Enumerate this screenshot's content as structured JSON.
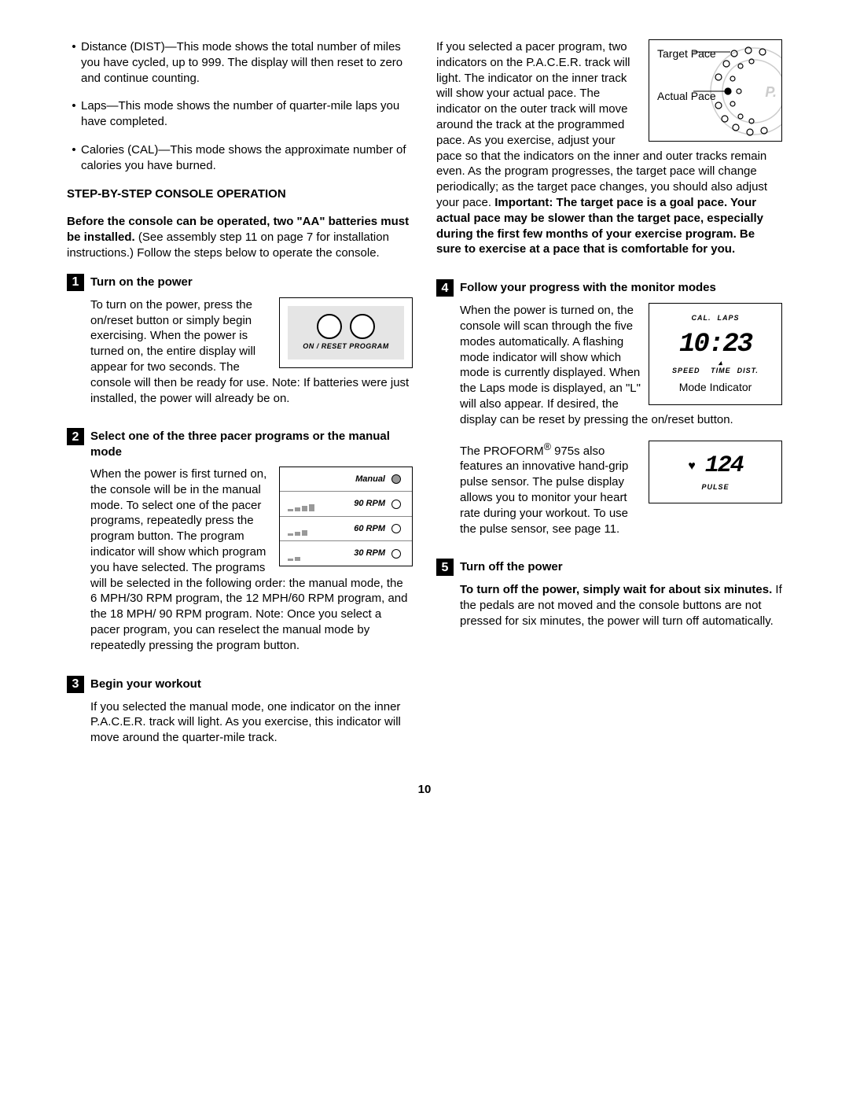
{
  "page_number": "10",
  "left_column": {
    "bullets": [
      "Distance (DIST)—This mode shows the total number of miles you have cycled, up to 999. The display will then reset to zero and continue counting.",
      "Laps—This mode shows the number of quarter-mile laps you have completed.",
      "Calories (CAL)—This mode shows the approximate number of calories you have burned."
    ],
    "section_heading": "STEP-BY-STEP CONSOLE OPERATION",
    "intro_bold": "Before the console can be operated, two \"AA\" batteries must be installed.",
    "intro_rest": " (See assembly step 11 on page 7 for installation instructions.) Follow the steps below to operate the console.",
    "step1": {
      "num": "1",
      "title": "Turn on the power",
      "body": "To turn on the power, press the on/reset button or simply begin exercising. When the power is turned on, the entire display will appear for two seconds. The console will then be ready for use. Note: If batteries were just installed, the power will already be on.",
      "fig_label": "ON / RESET PROGRAM"
    },
    "step2": {
      "num": "2",
      "title": "Select one of the three pacer programs or the manual mode",
      "body": "When the power is first turned on, the console will be in the manual mode. To select one of the pacer programs, repeatedly press the program button. The program indicator will show which program you have selected. The programs will be selected in the following order: the manual mode, the 6 MPH/30 RPM program, the 12 MPH/60 RPM program, and the 18 MPH/ 90 RPM program. Note: Once you select a pacer program, you can reselect the manual mode by repeatedly pressing the program button.",
      "rpm_rows": [
        {
          "label": "Manual",
          "filled": true,
          "bar_heights": []
        },
        {
          "label": "90 RPM",
          "filled": false,
          "bar_heights": [
            3,
            5,
            7,
            9
          ]
        },
        {
          "label": "60 RPM",
          "filled": false,
          "bar_heights": [
            3,
            5,
            7
          ]
        },
        {
          "label": "30 RPM",
          "filled": false,
          "bar_heights": [
            3,
            5
          ]
        }
      ]
    },
    "step3": {
      "num": "3",
      "title": "Begin your workout",
      "body": "If you selected the manual mode, one indicator on the inner P.A.C.E.R. track will light. As you exercise, this indicator will move around the quarter-mile track."
    }
  },
  "right_column": {
    "step3_cont": "If you selected a pacer program, two indicators on the P.A.C.E.R. track will light. The indicator on the inner track will show your actual pace. The indicator on the outer track will move around the track at the programmed pace. As you exercise, adjust your pace so that the indicators on the inner and outer tracks remain even. As the program progresses, the target pace will change periodically; as the target pace changes, you should also adjust your pace. ",
    "step3_bold": "Important: The target pace is a goal pace. Your actual pace may be slower than the target pace, especially during the first few months of your exercise program. Be sure to exercise at a pace that is comfortable for you.",
    "pacer_labels": {
      "target": "Target Pace",
      "actual": "Actual Pace",
      "p_letter": "P."
    },
    "step4": {
      "num": "4",
      "title": "Follow your progress with the monitor modes",
      "body1": "When the power is turned on, the console will scan through the five modes automatically. A flashing mode indicator will show which mode is currently displayed. When the Laps mode is displayed, an \"L\" will also appear. If desired, the display can be reset by pressing the on/reset button.",
      "body2_pre": "The PROFORM",
      "body2_post": " 975s also features an innovative hand-grip pulse sensor. The pulse display allows you to monitor your heart rate during your workout. To use the pulse sensor, see page 11.",
      "mode_top": [
        "CAL.",
        "LAPS"
      ],
      "mode_digits": "10:23",
      "mode_bottom": [
        "SPEED",
        "TIME",
        "DIST."
      ],
      "mode_indicator": "Mode Indicator",
      "pulse_digits": "124",
      "pulse_label": "PULSE"
    },
    "step5": {
      "num": "5",
      "title": "Turn off the power",
      "body_bold": "To turn off the power, simply wait for about six minutes.",
      "body_rest": " If the pedals are not moved and the console buttons are not pressed for six minutes, the power will turn off automatically."
    }
  },
  "colors": {
    "text": "#000000",
    "background": "#ffffff",
    "gray_fill": "#e5e5e5",
    "bar_gray": "#999999",
    "border": "#000000"
  },
  "typography": {
    "body_font": "Arial",
    "body_size_pt": 11,
    "line_height": 1.32
  }
}
